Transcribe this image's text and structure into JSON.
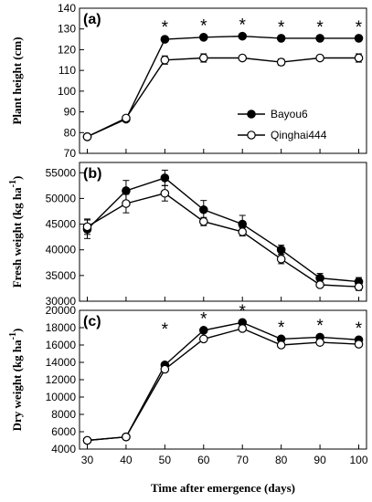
{
  "chart_data": {
    "x_label": "Time after emergence (days)",
    "x_ticks": [
      "30",
      "40",
      "50",
      "60",
      "70",
      "80",
      "90",
      "100"
    ],
    "x": [
      30,
      40,
      50,
      60,
      70,
      80,
      90,
      100
    ],
    "xlim": [
      28,
      102
    ],
    "panels": [
      {
        "type": "line",
        "panel_label": "(a)",
        "ylabel": "Plant height (cm)",
        "ylabel_sup": "",
        "ylim": [
          70,
          140
        ],
        "yticks": [
          "70",
          "80",
          "90",
          "100",
          "110",
          "120",
          "130",
          "140"
        ],
        "ytick_values": [
          70,
          80,
          90,
          100,
          110,
          120,
          130,
          140
        ],
        "significance_marker": "*",
        "significant_x": [
          50,
          60,
          70,
          80,
          90,
          100
        ],
        "legend": {
          "placement": "right",
          "entries": [
            "Bayou6",
            "Qinghai444"
          ]
        },
        "series": [
          {
            "name": "Bayou6",
            "marker": "filled",
            "values": [
              78,
              86.5,
              125,
              126,
              126.5,
              125.5,
              125.5,
              125.5
            ],
            "errors": [
              0,
              0.8,
              0.8,
              1,
              1,
              0.8,
              0.8,
              0.8
            ]
          },
          {
            "name": "Qinghai444",
            "marker": "open",
            "values": [
              78,
              87,
              115,
              116,
              116,
              114,
              116,
              116
            ],
            "errors": [
              0,
              0.8,
              2,
              2,
              1,
              1.5,
              1,
              2
            ]
          }
        ]
      },
      {
        "type": "line",
        "panel_label": "(b)",
        "ylabel": "Fresh weight (kg ha",
        "ylabel_sup": "-1",
        "ylim": [
          30000,
          57000
        ],
        "yticks": [
          "30000",
          "35000",
          "40000",
          "45000",
          "50000",
          "55000"
        ],
        "ytick_values": [
          30000,
          35000,
          40000,
          45000,
          50000,
          55000
        ],
        "significance_marker": "",
        "significant_x": [],
        "series": [
          {
            "name": "Bayou6",
            "marker": "filled",
            "values": [
              44000,
              51500,
              54000,
              47800,
              45000,
              40000,
              34500,
              33800
            ],
            "errors": [
              1800,
              2000,
              1500,
              1800,
              1700,
              900,
              900,
              800
            ]
          },
          {
            "name": "Qinghai444",
            "marker": "open",
            "values": [
              44500,
              49000,
              51000,
              45500,
              43500,
              38200,
              33200,
              32800
            ],
            "errors": [
              1500,
              1800,
              1500,
              800,
              800,
              900,
              500,
              700
            ]
          }
        ]
      },
      {
        "type": "line",
        "panel_label": "(c)",
        "ylabel": "Dry weight (kg ha",
        "ylabel_sup": "-1",
        "ylim": [
          4000,
          20000
        ],
        "yticks": [
          "4000",
          "6000",
          "8000",
          "10000",
          "12000",
          "14000",
          "16000",
          "18000",
          "20000"
        ],
        "ytick_values": [
          4000,
          6000,
          8000,
          10000,
          12000,
          14000,
          16000,
          18000,
          20000
        ],
        "significance_marker": "*",
        "significant_x": [
          50,
          60,
          70,
          80,
          90,
          100
        ],
        "series": [
          {
            "name": "Bayou6",
            "marker": "filled",
            "values": [
              5000,
              5400,
              13700,
              17700,
              18600,
              16700,
              16900,
              16600
            ],
            "errors": [
              0,
              0,
              250,
              250,
              250,
              250,
              250,
              250
            ]
          },
          {
            "name": "Qinghai444",
            "marker": "open",
            "values": [
              5000,
              5400,
              13200,
              16700,
              17900,
              16000,
              16300,
              16100
            ],
            "errors": [
              0,
              0,
              250,
              250,
              250,
              250,
              250,
              250
            ]
          }
        ]
      }
    ]
  }
}
